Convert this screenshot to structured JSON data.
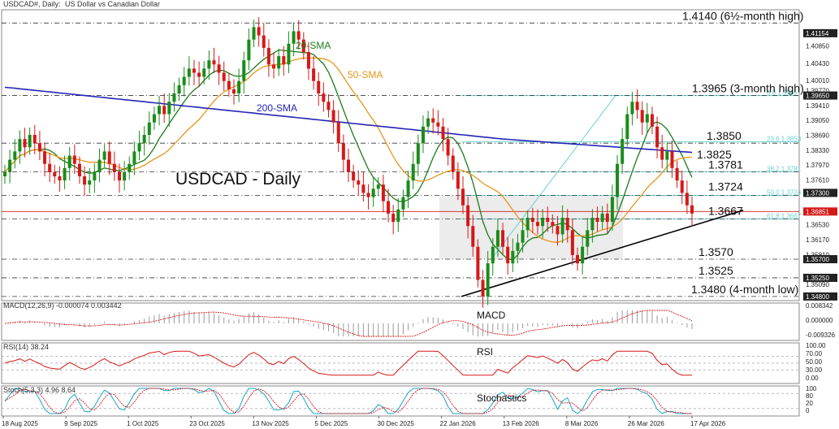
{
  "header": {
    "symbol": "USDCAD#, Daily:",
    "description": "US Dollar vs Canadian Dollar"
  },
  "main_title": "USDCAD - Daily",
  "chart_data": {
    "type": "line",
    "price": {
      "y_ticks": [
        "1.41154",
        "1.40850",
        "1.40430",
        "1.40010",
        "1.39770",
        "1.39650",
        "1.39410",
        "1.39050",
        "1.38690",
        "1.38330",
        "1.37970",
        "1.37610",
        "1.37300",
        "1.36890",
        "1.36851",
        "1.36530",
        "1.36170",
        "1.35810",
        "1.35700",
        "1.35250",
        "1.35090",
        "1.34800"
      ],
      "ylim": [
        1.347,
        1.4172
      ],
      "x_ticks": [
        "18 Aug 2025",
        "9 Sep 2025",
        "1 Oct 2025",
        "23 Oct 2025",
        "13 Nov 2025",
        "5 Dec 2025",
        "30 Dec 2025",
        "22 Jan 2026",
        "13 Feb 2026",
        "8 Mar 2026",
        "26 Mar 2026",
        "17 Apr 2026"
      ],
      "current_price": "1.36851",
      "levels": [
        {
          "label": "1.4140 (6½-month high)",
          "value": 1.414
        },
        {
          "label": "1.3965 (3-month high)",
          "value": 1.3965
        },
        {
          "label": "1.3850",
          "value": 1.385
        },
        {
          "label": "1.3825",
          "value": 1.3825
        },
        {
          "label": "1.3781",
          "value": 1.3781
        },
        {
          "label": "1.3724",
          "value": 1.3724
        },
        {
          "label": "1.3667",
          "value": 1.3667
        },
        {
          "label": "1.3570",
          "value": 1.357
        },
        {
          "label": "1.3525",
          "value": 1.3525
        },
        {
          "label": "1.3480 (4-month low)",
          "value": 1.348
        }
      ],
      "fib_labels": [
        "61.8 1.3667",
        "50.0 1.3724",
        "38.2 1.3781",
        "23.6 1.3853",
        "0.0 1.3965",
        "1.3480"
      ],
      "series": [
        {
          "name": "20-SMA",
          "color": "#1a7a1a"
        },
        {
          "name": "50-SMA",
          "color": "#e8951a"
        },
        {
          "name": "200-SMA",
          "color": "#2424b8"
        }
      ],
      "close": [
        1.378,
        1.381,
        1.383,
        1.386,
        1.384,
        1.387,
        1.385,
        1.383,
        1.38,
        1.378,
        1.377,
        1.376,
        1.379,
        1.382,
        1.38,
        1.377,
        1.375,
        1.376,
        1.378,
        1.381,
        1.383,
        1.38,
        1.378,
        1.376,
        1.378,
        1.38,
        1.383,
        1.385,
        1.387,
        1.39,
        1.392,
        1.394,
        1.392,
        1.395,
        1.397,
        1.399,
        1.401,
        1.403,
        1.402,
        1.401,
        1.403,
        1.405,
        1.404,
        1.402,
        1.4,
        1.398,
        1.397,
        1.4,
        1.405,
        1.41,
        1.413,
        1.411,
        1.408,
        1.404,
        1.403,
        1.406,
        1.404,
        1.409,
        1.412,
        1.41,
        1.407,
        1.403,
        1.4,
        1.397,
        1.395,
        1.393,
        1.39,
        1.385,
        1.381,
        1.378,
        1.376,
        1.375,
        1.373,
        1.372,
        1.374,
        1.375,
        1.371,
        1.368,
        1.366,
        1.369,
        1.372,
        1.376,
        1.38,
        1.385,
        1.389,
        1.391,
        1.39,
        1.389,
        1.386,
        1.382,
        1.378,
        1.374,
        1.37,
        1.365,
        1.36,
        1.352,
        1.348,
        1.356,
        1.36,
        1.364,
        1.36,
        1.356,
        1.359,
        1.361,
        1.364,
        1.367,
        1.366,
        1.365,
        1.367,
        1.366,
        1.365,
        1.363,
        1.367,
        1.364,
        1.358,
        1.356,
        1.36,
        1.364,
        1.367,
        1.366,
        1.368,
        1.366,
        1.372,
        1.38,
        1.386,
        1.392,
        1.395,
        1.393,
        1.39,
        1.392,
        1.389,
        1.384,
        1.381,
        1.383,
        1.379,
        1.376,
        1.373,
        1.37,
        1.368
      ]
    },
    "macd": {
      "label": "MACD(12,26,9) -0.000074 0.003442",
      "title": "MACD",
      "y_ticks": [
        "0.008342",
        "0.000000",
        "-0.009326"
      ]
    },
    "rsi": {
      "label": "RSI(14) 38.24",
      "title": "RSI",
      "y_ticks": [
        "100.00",
        "70.00",
        "50.00",
        "30.00",
        "0.00"
      ]
    },
    "stoch": {
      "label": "Stoch(5,3,3) 4.96 8.64",
      "title": "Stochastics",
      "y_ticks": [
        "100",
        "80",
        "20",
        "0"
      ]
    }
  },
  "colors": {
    "bull": "#1a8c1a",
    "bear": "#d61818",
    "macd_hist": "#9a9a9a",
    "signal": "#d61818",
    "rsi": "#d61818",
    "stoch_main": "#18a4c8",
    "stoch_sig": "#d61818",
    "trend": "#000000"
  }
}
